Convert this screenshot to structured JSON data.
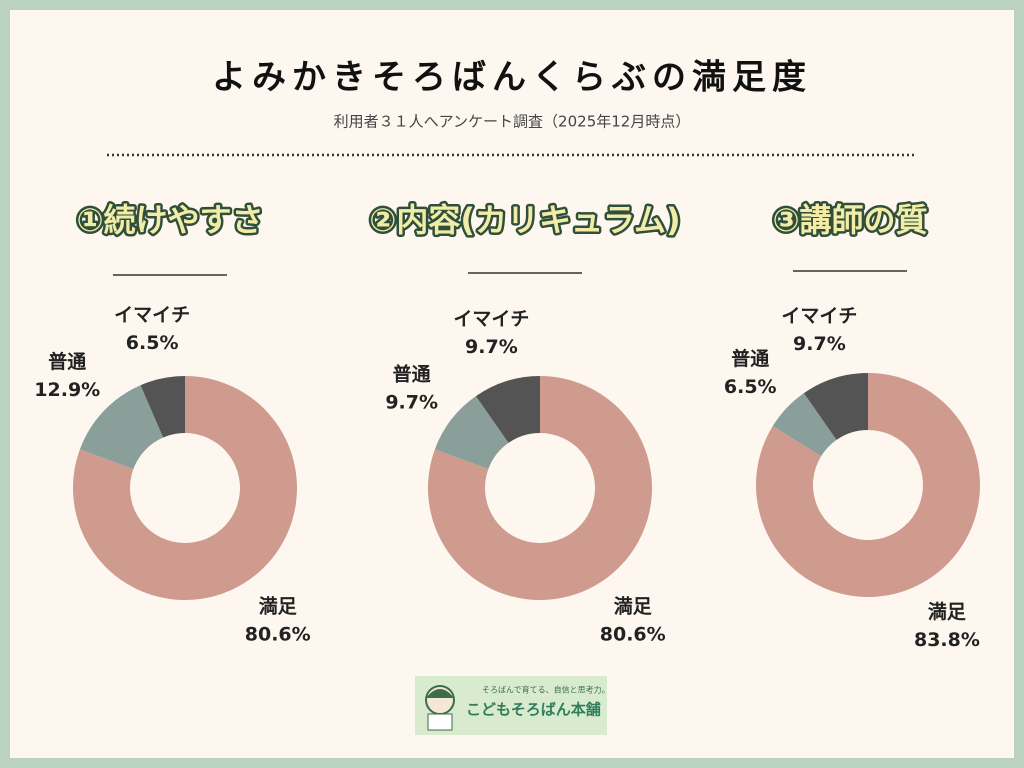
{
  "header": {
    "title": "よみかきそろばんくらぶの満足度",
    "subtitle": "利用者３１人へアンケート調査（2025年12月時点）"
  },
  "chart_data": [
    {
      "type": "pie",
      "title": "①続けやすさ",
      "categories": [
        "満足",
        "普通",
        "イマイチ"
      ],
      "values": [
        80.6,
        12.9,
        6.5
      ],
      "value_labels": [
        "80.6%",
        "12.9%",
        "6.5%"
      ],
      "colors": [
        "#d09b8f",
        "#8a9f99",
        "#545454"
      ]
    },
    {
      "type": "pie",
      "title": "②内容(カリキュラム)",
      "categories": [
        "満足",
        "普通",
        "イマイチ"
      ],
      "values": [
        80.6,
        9.7,
        9.7
      ],
      "value_labels": [
        "80.6%",
        "9.7%",
        "9.7%"
      ],
      "colors": [
        "#d09b8f",
        "#8a9f99",
        "#545454"
      ]
    },
    {
      "type": "pie",
      "title": "③講師の質",
      "categories": [
        "満足",
        "普通",
        "イマイチ"
      ],
      "values": [
        83.8,
        6.5,
        9.7
      ],
      "value_labels": [
        "83.8%",
        "6.5%",
        "9.7%"
      ],
      "colors": [
        "#d09b8f",
        "#8a9f99",
        "#545454"
      ]
    }
  ],
  "logo": {
    "tagline": "そろばんで育てる、自信と思考力。",
    "name": "こどもそろばん本舗"
  }
}
